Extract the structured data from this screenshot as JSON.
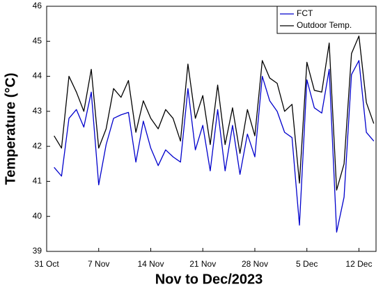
{
  "chart_data": {
    "type": "line",
    "xlabel": "Nov to Dec/2023",
    "ylabel": "Temperature (°C)",
    "x": [
      1,
      2,
      3,
      4,
      5,
      6,
      7,
      8,
      9,
      10,
      11,
      12,
      13,
      14,
      15,
      16,
      17,
      18,
      19,
      20,
      21,
      22,
      23,
      24,
      25,
      26,
      27,
      28,
      29,
      30,
      31,
      32,
      33,
      34,
      35,
      36,
      37,
      38,
      39,
      40,
      41,
      42,
      43,
      44
    ],
    "series": [
      {
        "name": "FCT",
        "color": "#0000cc",
        "values": [
          41.4,
          41.15,
          42.8,
          43.05,
          42.55,
          43.55,
          40.9,
          42.05,
          42.8,
          42.9,
          42.97,
          41.55,
          42.72,
          41.95,
          41.45,
          41.9,
          41.7,
          41.55,
          43.65,
          41.9,
          42.6,
          41.3,
          43.05,
          41.3,
          42.6,
          41.2,
          42.35,
          41.7,
          44.0,
          43.3,
          43.0,
          42.4,
          42.25,
          39.75,
          43.9,
          43.1,
          42.95,
          44.2,
          39.55,
          40.55,
          44.05,
          44.45,
          42.4,
          42.15
        ]
      },
      {
        "name": "Outdoor Temp.",
        "color": "#000000",
        "values": [
          42.3,
          41.95,
          44.0,
          43.55,
          43.0,
          44.2,
          41.95,
          42.5,
          43.65,
          43.4,
          43.88,
          42.4,
          43.3,
          42.8,
          42.5,
          43.05,
          42.8,
          42.15,
          44.35,
          42.8,
          43.45,
          42.05,
          43.75,
          42.05,
          43.1,
          41.8,
          43.05,
          42.3,
          44.45,
          43.95,
          43.8,
          43.0,
          43.2,
          40.95,
          44.4,
          43.6,
          43.55,
          44.95,
          40.75,
          41.5,
          44.65,
          45.15,
          43.25,
          42.65
        ]
      }
    ],
    "xlim": [
      0,
      44.3
    ],
    "xticks": [
      {
        "value": 0,
        "label": "31 Oct"
      },
      {
        "value": 7,
        "label": "7 Nov"
      },
      {
        "value": 14,
        "label": "14 Nov"
      },
      {
        "value": 21,
        "label": "21 Nov"
      },
      {
        "value": 28,
        "label": "28 Nov"
      },
      {
        "value": 35,
        "label": "5 Dec"
      },
      {
        "value": 42,
        "label": "12 Dec"
      }
    ],
    "ylim": [
      39,
      46
    ],
    "yticks": [
      39,
      40,
      41,
      42,
      43,
      44,
      45,
      46
    ],
    "legend": "upper right"
  }
}
